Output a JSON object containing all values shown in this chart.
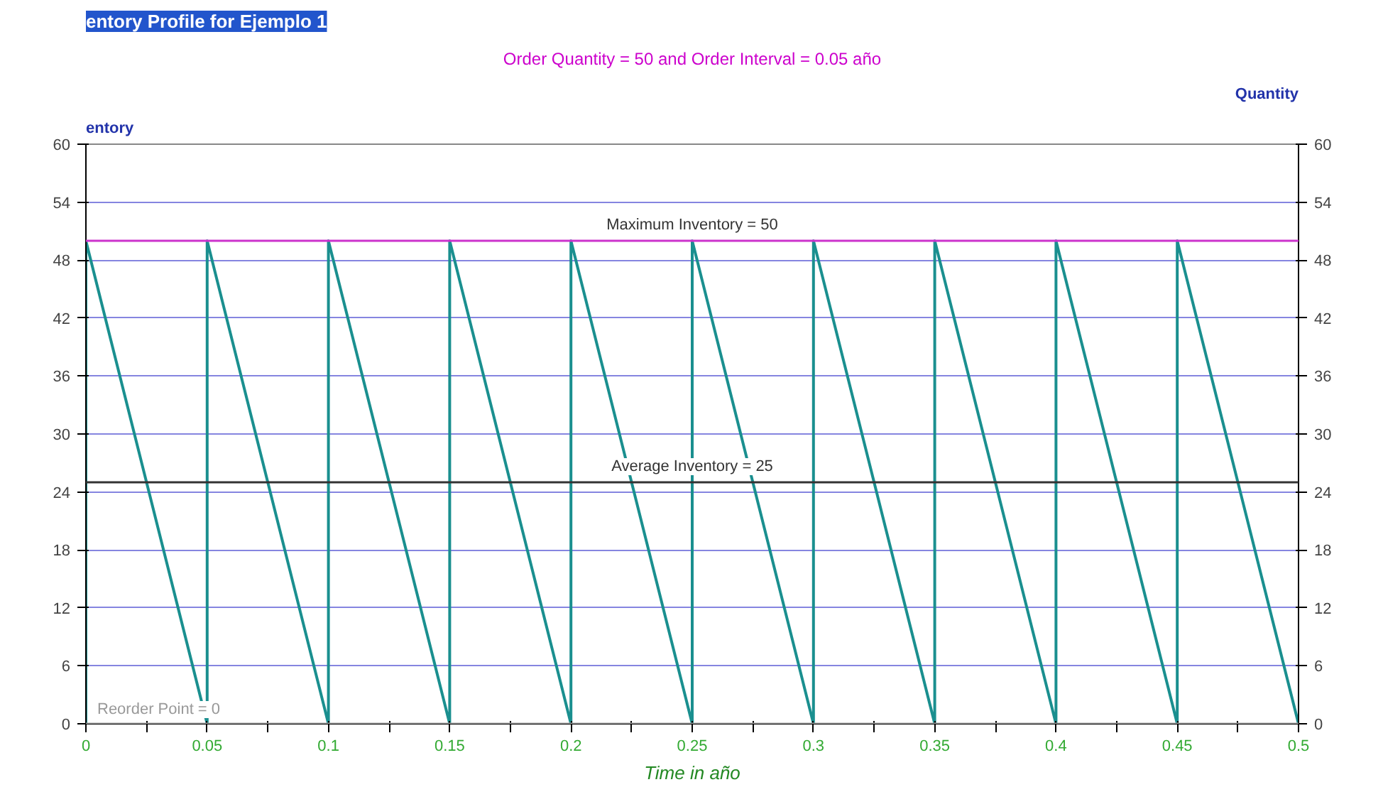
{
  "chart_data": {
    "type": "line",
    "title": "entory Profile for Ejemplo 1",
    "subtitle": "Order Quantity = 50 and Order Interval = 0.05 año",
    "xlabel": "Time in año",
    "ylabel": "entory",
    "y2label": "Quantity",
    "x": [
      0,
      0,
      0.05,
      0.05,
      0.1,
      0.1,
      0.15,
      0.15,
      0.2,
      0.2,
      0.25,
      0.25,
      0.3,
      0.3,
      0.35,
      0.35,
      0.4,
      0.4,
      0.45,
      0.45,
      0.5
    ],
    "series": [
      {
        "color": "#1a8f8f",
        "values": [
          0,
          50,
          0,
          50,
          0,
          50,
          0,
          50,
          0,
          50,
          0,
          50,
          0,
          50,
          0,
          50,
          0,
          50,
          0,
          50,
          0
        ]
      }
    ],
    "xlim": [
      0,
      0.5
    ],
    "xticks": [
      0,
      {
        "value": 0.025,
        "label": null
      },
      0.05,
      {
        "value": 0.075,
        "label": null
      },
      0.1,
      {
        "value": 0.125,
        "label": null
      },
      0.15,
      {
        "value": 0.175,
        "label": null
      },
      0.2,
      {
        "value": 0.225,
        "label": null
      },
      0.25,
      {
        "value": 0.275,
        "label": null
      },
      0.3,
      {
        "value": 0.325,
        "label": null
      },
      0.35,
      {
        "value": 0.375,
        "label": null
      },
      0.4,
      {
        "value": 0.425,
        "label": null
      },
      0.45,
      {
        "value": 0.475,
        "label": null
      },
      0.5
    ],
    "ylim": [
      0,
      60
    ],
    "yticks": [
      0,
      6,
      12,
      18,
      24,
      30,
      36,
      42,
      48,
      54,
      60
    ],
    "y2lim": [
      0,
      60
    ],
    "y2ticks": [
      0,
      6,
      12,
      18,
      24,
      30,
      36,
      42,
      48,
      54,
      60
    ],
    "ref_lines": [
      {
        "axis": "y",
        "value": 50,
        "label": "Maximum Inventory = 50",
        "color": "#cc33cc"
      },
      {
        "axis": "y",
        "value": 25,
        "label": "Average Inventory = 25",
        "color": "#333333"
      },
      {
        "axis": "y",
        "value": 0,
        "label": "Reorder Point = 0",
        "color": "#999999"
      }
    ],
    "grid": "y",
    "line_style": "solid",
    "marker": "none"
  }
}
